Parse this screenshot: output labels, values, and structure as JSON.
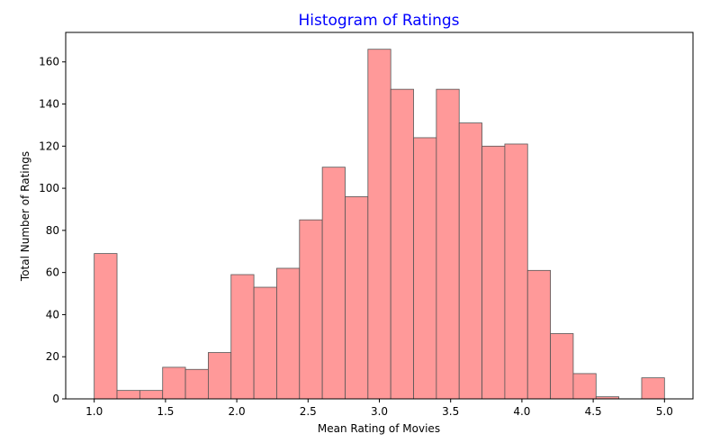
{
  "chart_data": {
    "type": "bar",
    "title": "Histogram of Ratings",
    "xlabel": "Mean Rating of Movies",
    "ylabel": "Total Number of Ratings",
    "xlim": [
      0.8,
      5.2
    ],
    "ylim": [
      0,
      174
    ],
    "xticks": [
      1.0,
      1.5,
      2.0,
      2.5,
      3.0,
      3.5,
      4.0,
      4.5,
      5.0
    ],
    "xtick_labels": [
      "1.0",
      "1.5",
      "2.0",
      "2.5",
      "3.0",
      "3.5",
      "4.0",
      "4.5",
      "5.0"
    ],
    "yticks": [
      0,
      20,
      40,
      60,
      80,
      100,
      120,
      140,
      160
    ],
    "ytick_labels": [
      "0",
      "20",
      "40",
      "60",
      "80",
      "100",
      "120",
      "140",
      "160"
    ],
    "bin_start": 1.0,
    "bin_width": 0.16,
    "values": [
      69,
      4,
      4,
      15,
      14,
      22,
      59,
      53,
      62,
      85,
      110,
      96,
      166,
      147,
      124,
      147,
      131,
      120,
      121,
      61,
      31,
      12,
      1,
      0,
      10
    ],
    "grid": false,
    "colors": {
      "bar_fill": "#ff9999",
      "bar_edge": "#555555",
      "title": "#0000ff",
      "axis": "#000000"
    }
  }
}
